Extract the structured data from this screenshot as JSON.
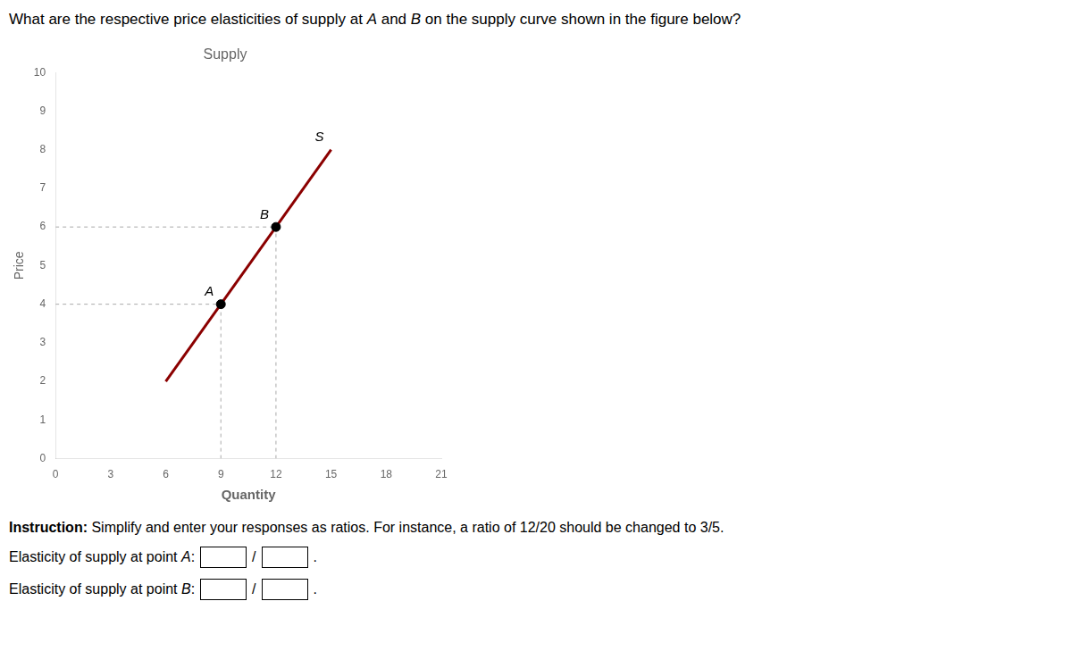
{
  "question": [
    "What are the respective price elasticities of supply at ",
    "A",
    " and ",
    "B",
    " on the supply curve shown in the figure below?"
  ],
  "chart_data": {
    "type": "line",
    "title": "Supply",
    "xlabel": "Quantity",
    "ylabel": "Price",
    "xlim": [
      0,
      21
    ],
    "ylim": [
      0,
      10
    ],
    "xticks": [
      0,
      3,
      6,
      9,
      12,
      15,
      18,
      21
    ],
    "yticks": [
      0,
      1,
      2,
      3,
      4,
      5,
      6,
      7,
      8,
      9,
      10
    ],
    "grid": false,
    "series": [
      {
        "type": "line",
        "line_style": "solid",
        "color": "#8B0000",
        "x": [
          6,
          15
        ],
        "values": [
          2,
          8
        ]
      },
      {
        "type": "line",
        "line_style": "dashed",
        "color": "#AAAAAA",
        "x": [
          9,
          9
        ],
        "values": [
          0,
          4
        ]
      },
      {
        "type": "line",
        "line_style": "dashed",
        "color": "#AAAAAA",
        "x": [
          0,
          9
        ],
        "values": [
          4,
          4
        ]
      },
      {
        "type": "line",
        "line_style": "dashed",
        "color": "#AAAAAA",
        "x": [
          12,
          12
        ],
        "values": [
          0,
          6
        ]
      },
      {
        "type": "line",
        "line_style": "dashed",
        "color": "#AAAAAA",
        "x": [
          0,
          12
        ],
        "values": [
          6,
          6
        ]
      },
      {
        "type": "scatter",
        "marker": "circle",
        "color": "#000000",
        "x": [
          9,
          12
        ],
        "values": [
          4,
          6
        ]
      }
    ],
    "annotations": [
      {
        "text": "S",
        "x": 15,
        "y": 8
      },
      {
        "text": "A",
        "x": 9,
        "y": 4
      },
      {
        "text": "B",
        "x": 12,
        "y": 6
      }
    ]
  },
  "instruction": [
    "Instruction:",
    " Simplify and enter your responses as ratios. For instance, a ratio of 12/20 should be changed to 3/5."
  ],
  "answer_lines": [
    [
      "Elasticity of supply at point ",
      "A",
      ":"
    ],
    [
      "Elasticity of supply at point ",
      "B",
      ":"
    ]
  ],
  "answer_separator": "/",
  "answer_end": "."
}
